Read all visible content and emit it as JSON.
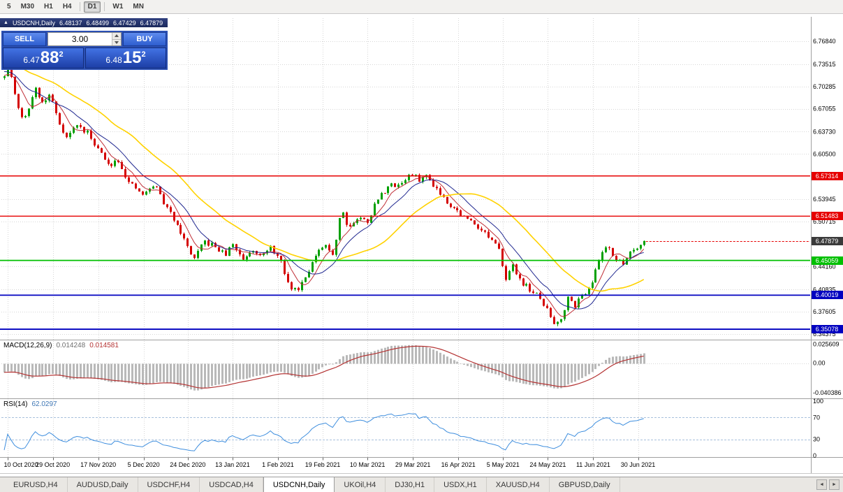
{
  "toolbar": {
    "timeframes": [
      {
        "label": "5",
        "active": false,
        "sep_after": false
      },
      {
        "label": "M30",
        "active": false,
        "sep_after": false
      },
      {
        "label": "H1",
        "active": false,
        "sep_after": false
      },
      {
        "label": "H4",
        "active": false,
        "sep_after": true
      },
      {
        "label": "D1",
        "active": true,
        "sep_after": true
      },
      {
        "label": "W1",
        "active": false,
        "sep_after": false
      },
      {
        "label": "MN",
        "active": false,
        "sep_after": false
      }
    ]
  },
  "chart_header": {
    "collapse_icon": "▲",
    "title": "USDCNH,Daily",
    "open": "6.48137",
    "high": "6.48499",
    "low": "6.47429",
    "close": "6.47879"
  },
  "trade_panel": {
    "sell_label": "SELL",
    "buy_label": "BUY",
    "volume": "3.00",
    "bid": {
      "prefix": "6.47",
      "big": "88",
      "sup": "2"
    },
    "ask": {
      "prefix": "6.48",
      "big": "15",
      "sup": "2"
    }
  },
  "indicators": {
    "macd": {
      "name": "MACD(12,26,9)",
      "value_main": "0.014248",
      "value_signal": "0.014581"
    },
    "rsi": {
      "name": "RSI(14)",
      "value": "62.0297"
    }
  },
  "tabs": {
    "scroll_left": "◄",
    "scroll_right": "►",
    "items": [
      {
        "label": "EURUSD,H4",
        "active": false
      },
      {
        "label": "AUDUSD,Daily",
        "active": false
      },
      {
        "label": "USDCHF,H4",
        "active": false
      },
      {
        "label": "USDCAD,H4",
        "active": false
      },
      {
        "label": "USDCNH,Daily",
        "active": true
      },
      {
        "label": "UKOil,H4",
        "active": false
      },
      {
        "label": "DJ30,H1",
        "active": false
      },
      {
        "label": "USDX,H1",
        "active": false
      },
      {
        "label": "XAUUSD,H4",
        "active": false
      },
      {
        "label": "GBPUSD,Daily",
        "active": false
      }
    ]
  },
  "chart_data": {
    "type": "candlestick",
    "symbol": "USDCNH",
    "period": "Daily",
    "price_axis": {
      "max": 6.8,
      "min": 6.3397,
      "labels": [
        "6.76840",
        "6.73515",
        "6.70285",
        "6.67055",
        "6.63730",
        "6.60500",
        "6.53945",
        "6.50715",
        "6.44160",
        "6.40835",
        "6.37605",
        "6.34375"
      ]
    },
    "levels": [
      {
        "price": 6.57314,
        "label": "6.57314",
        "color": "#E60000",
        "width": 1.4
      },
      {
        "price": 6.51483,
        "label": "6.51483",
        "color": "#E60000",
        "width": 1.4
      },
      {
        "price": 6.45059,
        "label": "6.45059",
        "color": "#00C000",
        "width": 1.8
      },
      {
        "price": 6.40019,
        "label": "6.40019",
        "color": "#0000C0",
        "width": 1.8
      },
      {
        "price": 6.35078,
        "label": "6.35078",
        "color": "#0000C0",
        "width": 1.8
      }
    ],
    "current_price": {
      "value": 6.47879,
      "label": "6.47879",
      "tag_bg": "#3A3A3A",
      "line_color": "#E60000"
    },
    "date_ticks": [
      {
        "label": "10 Oct 2020",
        "t": 0.005
      },
      {
        "label": "29 Oct 2020",
        "t": 0.076
      },
      {
        "label": "17 Nov 2020",
        "t": 0.147
      },
      {
        "label": "5 Dec 2020",
        "t": 0.218
      },
      {
        "label": "24 Dec 2020",
        "t": 0.287
      },
      {
        "label": "13 Jan 2021",
        "t": 0.357
      },
      {
        "label": "1 Feb 2021",
        "t": 0.428
      },
      {
        "label": "19 Feb 2021",
        "t": 0.498
      },
      {
        "label": "10 Mar 2021",
        "t": 0.568
      },
      {
        "label": "29 Mar 2021",
        "t": 0.639
      },
      {
        "label": "16 Apr 2021",
        "t": 0.71
      },
      {
        "label": "5 May 2021",
        "t": 0.78
      },
      {
        "label": "24 May 2021",
        "t": 0.85
      },
      {
        "label": "11 Jun 2021",
        "t": 0.921
      },
      {
        "label": "30 Jun 2021",
        "t": 0.991
      }
    ],
    "candles": {
      "count": 186,
      "seed": 11,
      "noise": 0.004,
      "wick": 0.0032,
      "up_color": "#00A000",
      "down_color": "#D40000",
      "path": [
        [
          0.0,
          6.715
        ],
        [
          0.008,
          6.735
        ],
        [
          0.02,
          6.672
        ],
        [
          0.032,
          6.655
        ],
        [
          0.048,
          6.702
        ],
        [
          0.06,
          6.678
        ],
        [
          0.072,
          6.692
        ],
        [
          0.085,
          6.652
        ],
        [
          0.098,
          6.628
        ],
        [
          0.112,
          6.648
        ],
        [
          0.13,
          6.635
        ],
        [
          0.147,
          6.612
        ],
        [
          0.162,
          6.588
        ],
        [
          0.178,
          6.598
        ],
        [
          0.195,
          6.562
        ],
        [
          0.218,
          6.545
        ],
        [
          0.235,
          6.562
        ],
        [
          0.252,
          6.528
        ],
        [
          0.27,
          6.505
        ],
        [
          0.285,
          6.472
        ],
        [
          0.298,
          6.452
        ],
        [
          0.312,
          6.478
        ],
        [
          0.33,
          6.47
        ],
        [
          0.345,
          6.458
        ],
        [
          0.357,
          6.475
        ],
        [
          0.372,
          6.452
        ],
        [
          0.388,
          6.468
        ],
        [
          0.405,
          6.458
        ],
        [
          0.418,
          6.47
        ],
        [
          0.432,
          6.448
        ],
        [
          0.445,
          6.412
        ],
        [
          0.458,
          6.408
        ],
        [
          0.472,
          6.432
        ],
        [
          0.486,
          6.455
        ],
        [
          0.5,
          6.472
        ],
        [
          0.515,
          6.46
        ],
        [
          0.527,
          6.528
        ],
        [
          0.538,
          6.498
        ],
        [
          0.552,
          6.512
        ],
        [
          0.568,
          6.508
        ],
        [
          0.582,
          6.538
        ],
        [
          0.6,
          6.558
        ],
        [
          0.62,
          6.562
        ],
        [
          0.635,
          6.576
        ],
        [
          0.648,
          6.568
        ],
        [
          0.66,
          6.573
        ],
        [
          0.675,
          6.556
        ],
        [
          0.69,
          6.538
        ],
        [
          0.705,
          6.525
        ],
        [
          0.72,
          6.512
        ],
        [
          0.735,
          6.505
        ],
        [
          0.75,
          6.492
        ],
        [
          0.765,
          6.475
        ],
        [
          0.775,
          6.462
        ],
        [
          0.783,
          6.425
        ],
        [
          0.795,
          6.442
        ],
        [
          0.808,
          6.42
        ],
        [
          0.822,
          6.408
        ],
        [
          0.835,
          6.398
        ],
        [
          0.848,
          6.38
        ],
        [
          0.86,
          6.358
        ],
        [
          0.872,
          6.37
        ],
        [
          0.883,
          6.402
        ],
        [
          0.892,
          6.386
        ],
        [
          0.902,
          6.398
        ],
        [
          0.912,
          6.41
        ],
        [
          0.921,
          6.425
        ],
        [
          0.934,
          6.462
        ],
        [
          0.944,
          6.475
        ],
        [
          0.955,
          6.452
        ],
        [
          0.966,
          6.445
        ],
        [
          0.977,
          6.462
        ],
        [
          0.988,
          6.47
        ],
        [
          1.0,
          6.4788
        ]
      ]
    },
    "moving_averages": [
      {
        "period": 6,
        "color": "#C03038",
        "width": 1
      },
      {
        "period": 12,
        "color": "#202890",
        "width": 1
      },
      {
        "period": 30,
        "color": "#FFD200",
        "width": 1.6
      }
    ],
    "macd": {
      "fast": 12,
      "slow": 26,
      "signal": 9,
      "max": 0.03,
      "min": -0.046,
      "hist_color": "#B9B9B9",
      "signal_color": "#B43232",
      "axis_labels": [
        "0.025609",
        "0.00",
        "-0.040386"
      ]
    },
    "rsi": {
      "period": 14,
      "color": "#3E8EDE",
      "levels": [
        70,
        30
      ],
      "level_color": "#A8C0DC",
      "axis_labels": [
        100,
        70,
        30,
        0
      ]
    }
  }
}
